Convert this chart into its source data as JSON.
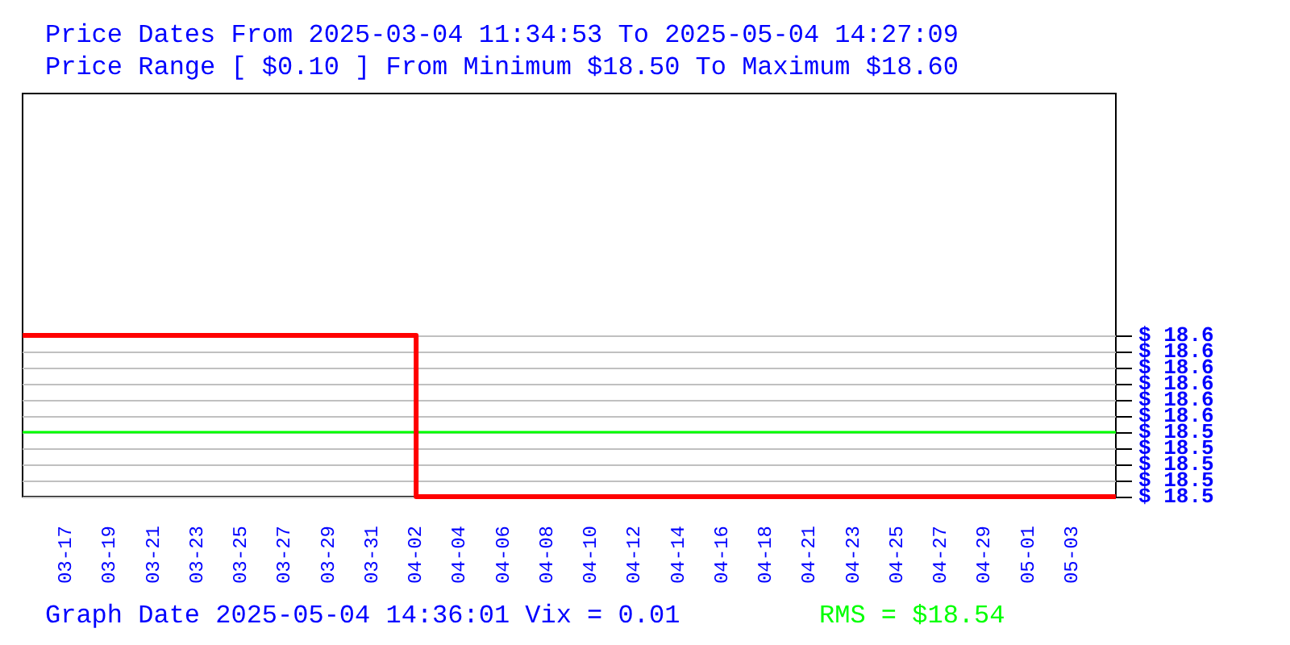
{
  "chart_data": {
    "type": "step",
    "title": "Price Dates From 2025-03-04 11:34:53 To 2025-05-04 14:27:09",
    "subtitle": "Price Range [ $0.10 ] From Minimum $18.50 To Maximum $18.60",
    "categories": [
      null,
      "03-17",
      "03-19",
      "03-21",
      "03-23",
      "03-25",
      "03-27",
      "03-29",
      "03-31",
      "04-02",
      "04-04",
      "04-06",
      "04-08",
      "04-10",
      "04-12",
      "04-14",
      "04-16",
      "04-18",
      "04-21",
      "04-23",
      "04-25",
      "04-27",
      "04-29",
      "05-01",
      "05-03",
      null
    ],
    "values": [
      18.6,
      18.6,
      18.6,
      18.6,
      18.6,
      18.6,
      18.6,
      18.6,
      18.6,
      18.5,
      18.5,
      18.5,
      18.5,
      18.5,
      18.5,
      18.5,
      18.5,
      18.5,
      18.5,
      18.5,
      18.5,
      18.5,
      18.5,
      18.5,
      18.5,
      18.5
    ],
    "color": "#ff0000",
    "marker": "none",
    "line_style": "solid",
    "ylim": [
      18.5,
      18.75
    ],
    "yticks": [
      {
        "value": 18.5,
        "label": "$ 18.5"
      },
      {
        "value": 18.51,
        "label": "$ 18.5"
      },
      {
        "value": 18.52,
        "label": "$ 18.5"
      },
      {
        "value": 18.53,
        "label": "$ 18.5"
      },
      {
        "value": 18.54,
        "label": "$ 18.5"
      },
      {
        "value": 18.55,
        "label": "$ 18.6"
      },
      {
        "value": 18.56,
        "label": "$ 18.6"
      },
      {
        "value": 18.57,
        "label": "$ 18.6"
      },
      {
        "value": 18.58,
        "label": "$ 18.6"
      },
      {
        "value": 18.59,
        "label": "$ 18.6"
      },
      {
        "value": 18.6,
        "label": "$ 18.6"
      }
    ],
    "grid": "y",
    "ref_lines": [
      {
        "axis": "y",
        "value": 18.54,
        "label": "RMS = $18.54",
        "color": "#00ff00"
      }
    ],
    "annotations": [
      "Graph Date 2025-05-04 14:36:01 Vix = 0.01"
    ]
  }
}
